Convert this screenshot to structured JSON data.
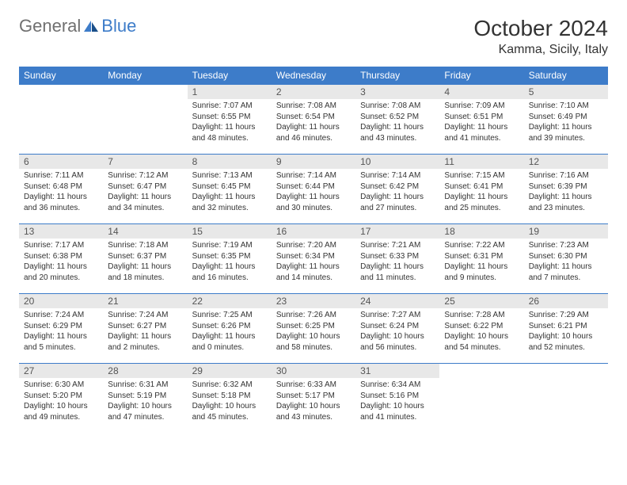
{
  "logo": {
    "part1": "General",
    "part2": "Blue"
  },
  "title": "October 2024",
  "location": "Kamma, Sicily, Italy",
  "colors": {
    "header_bg": "#3d7cc9",
    "header_fg": "#ffffff",
    "daynum_bg": "#e8e8e8",
    "border": "#3d7cc9",
    "text": "#333333",
    "logo_gray": "#707070",
    "logo_blue": "#3d7cc9"
  },
  "weekdays": [
    "Sunday",
    "Monday",
    "Tuesday",
    "Wednesday",
    "Thursday",
    "Friday",
    "Saturday"
  ],
  "weeks": [
    [
      null,
      null,
      {
        "n": "1",
        "sr": "7:07 AM",
        "ss": "6:55 PM",
        "dl": "11 hours and 48 minutes."
      },
      {
        "n": "2",
        "sr": "7:08 AM",
        "ss": "6:54 PM",
        "dl": "11 hours and 46 minutes."
      },
      {
        "n": "3",
        "sr": "7:08 AM",
        "ss": "6:52 PM",
        "dl": "11 hours and 43 minutes."
      },
      {
        "n": "4",
        "sr": "7:09 AM",
        "ss": "6:51 PM",
        "dl": "11 hours and 41 minutes."
      },
      {
        "n": "5",
        "sr": "7:10 AM",
        "ss": "6:49 PM",
        "dl": "11 hours and 39 minutes."
      }
    ],
    [
      {
        "n": "6",
        "sr": "7:11 AM",
        "ss": "6:48 PM",
        "dl": "11 hours and 36 minutes."
      },
      {
        "n": "7",
        "sr": "7:12 AM",
        "ss": "6:47 PM",
        "dl": "11 hours and 34 minutes."
      },
      {
        "n": "8",
        "sr": "7:13 AM",
        "ss": "6:45 PM",
        "dl": "11 hours and 32 minutes."
      },
      {
        "n": "9",
        "sr": "7:14 AM",
        "ss": "6:44 PM",
        "dl": "11 hours and 30 minutes."
      },
      {
        "n": "10",
        "sr": "7:14 AM",
        "ss": "6:42 PM",
        "dl": "11 hours and 27 minutes."
      },
      {
        "n": "11",
        "sr": "7:15 AM",
        "ss": "6:41 PM",
        "dl": "11 hours and 25 minutes."
      },
      {
        "n": "12",
        "sr": "7:16 AM",
        "ss": "6:39 PM",
        "dl": "11 hours and 23 minutes."
      }
    ],
    [
      {
        "n": "13",
        "sr": "7:17 AM",
        "ss": "6:38 PM",
        "dl": "11 hours and 20 minutes."
      },
      {
        "n": "14",
        "sr": "7:18 AM",
        "ss": "6:37 PM",
        "dl": "11 hours and 18 minutes."
      },
      {
        "n": "15",
        "sr": "7:19 AM",
        "ss": "6:35 PM",
        "dl": "11 hours and 16 minutes."
      },
      {
        "n": "16",
        "sr": "7:20 AM",
        "ss": "6:34 PM",
        "dl": "11 hours and 14 minutes."
      },
      {
        "n": "17",
        "sr": "7:21 AM",
        "ss": "6:33 PM",
        "dl": "11 hours and 11 minutes."
      },
      {
        "n": "18",
        "sr": "7:22 AM",
        "ss": "6:31 PM",
        "dl": "11 hours and 9 minutes."
      },
      {
        "n": "19",
        "sr": "7:23 AM",
        "ss": "6:30 PM",
        "dl": "11 hours and 7 minutes."
      }
    ],
    [
      {
        "n": "20",
        "sr": "7:24 AM",
        "ss": "6:29 PM",
        "dl": "11 hours and 5 minutes."
      },
      {
        "n": "21",
        "sr": "7:24 AM",
        "ss": "6:27 PM",
        "dl": "11 hours and 2 minutes."
      },
      {
        "n": "22",
        "sr": "7:25 AM",
        "ss": "6:26 PM",
        "dl": "11 hours and 0 minutes."
      },
      {
        "n": "23",
        "sr": "7:26 AM",
        "ss": "6:25 PM",
        "dl": "10 hours and 58 minutes."
      },
      {
        "n": "24",
        "sr": "7:27 AM",
        "ss": "6:24 PM",
        "dl": "10 hours and 56 minutes."
      },
      {
        "n": "25",
        "sr": "7:28 AM",
        "ss": "6:22 PM",
        "dl": "10 hours and 54 minutes."
      },
      {
        "n": "26",
        "sr": "7:29 AM",
        "ss": "6:21 PM",
        "dl": "10 hours and 52 minutes."
      }
    ],
    [
      {
        "n": "27",
        "sr": "6:30 AM",
        "ss": "5:20 PM",
        "dl": "10 hours and 49 minutes."
      },
      {
        "n": "28",
        "sr": "6:31 AM",
        "ss": "5:19 PM",
        "dl": "10 hours and 47 minutes."
      },
      {
        "n": "29",
        "sr": "6:32 AM",
        "ss": "5:18 PM",
        "dl": "10 hours and 45 minutes."
      },
      {
        "n": "30",
        "sr": "6:33 AM",
        "ss": "5:17 PM",
        "dl": "10 hours and 43 minutes."
      },
      {
        "n": "31",
        "sr": "6:34 AM",
        "ss": "5:16 PM",
        "dl": "10 hours and 41 minutes."
      },
      null,
      null
    ]
  ],
  "labels": {
    "sunrise": "Sunrise:",
    "sunset": "Sunset:",
    "daylight": "Daylight:"
  }
}
